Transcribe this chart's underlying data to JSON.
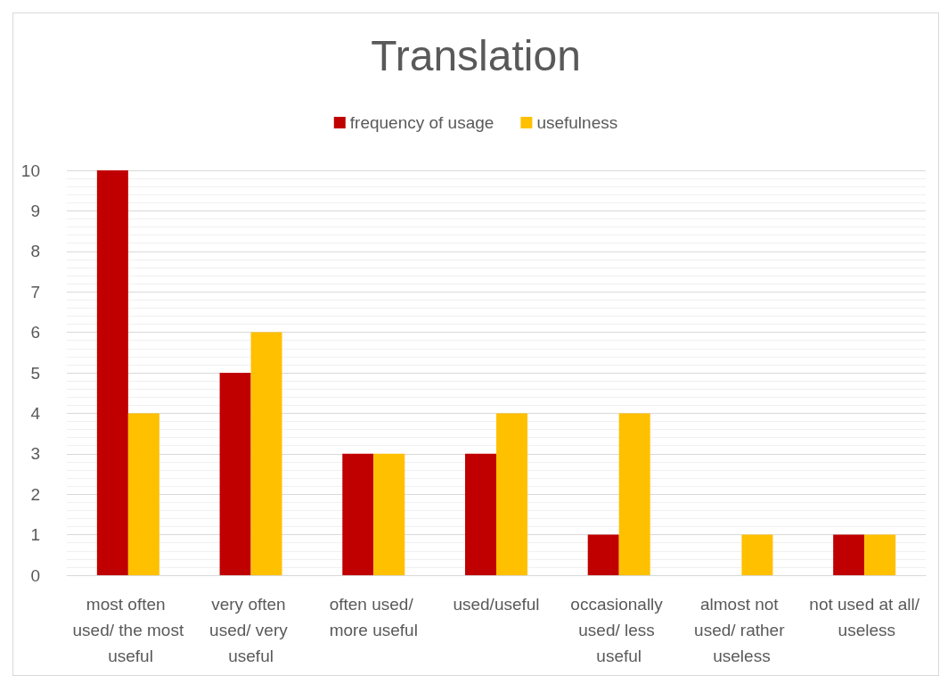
{
  "chart_data": {
    "type": "bar",
    "title": "Translation",
    "categories": [
      "most often used/ the most useful",
      "very often used/ very useful",
      "often used/ more useful",
      "used/useful",
      "occasionally used/ less useful",
      "almost not used/ rather useless",
      "not used at all/ useless"
    ],
    "series": [
      {
        "name": "frequency of usage",
        "color": "#c00000",
        "values": [
          10,
          5,
          3,
          3,
          1,
          0,
          1
        ]
      },
      {
        "name": "usefulness",
        "color": "#ffc000",
        "values": [
          4,
          6,
          3,
          4,
          4,
          1,
          1
        ]
      }
    ],
    "ylim": [
      0,
      10
    ],
    "yticks": [
      0,
      1,
      2,
      3,
      4,
      5,
      6,
      7,
      8,
      9,
      10
    ],
    "grid": "y",
    "legend": "top"
  }
}
